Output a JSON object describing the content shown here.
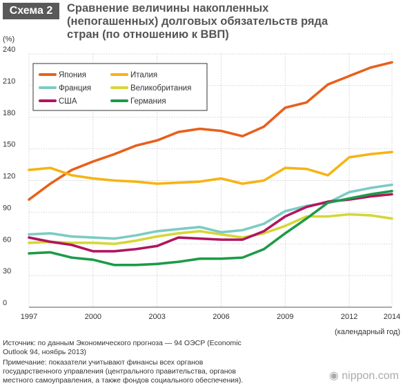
{
  "header": {
    "badge": "Схема 2",
    "title_lines": [
      "Сравнение величины накопленных",
      "(непогашенных) долговых обязательств ряда",
      "стран (по отношению к ВВП)"
    ]
  },
  "chart_data": {
    "type": "line",
    "ylabel": "(%)",
    "xlabel": "(календарный год)",
    "ylim": [
      0,
      240
    ],
    "yticks": [
      0,
      30,
      60,
      90,
      120,
      150,
      180,
      210,
      240
    ],
    "xlim": [
      1997,
      2014
    ],
    "xticks": [
      1997,
      2000,
      2003,
      2006,
      2009,
      2012,
      2014
    ],
    "grid": true,
    "legend_position": "top-left",
    "x": [
      1997,
      1998,
      1999,
      2000,
      2001,
      2002,
      2003,
      2004,
      2005,
      2006,
      2007,
      2008,
      2009,
      2010,
      2011,
      2012,
      2013,
      2014
    ],
    "series": [
      {
        "name": "Япония",
        "color": "#e8601c",
        "values": [
          102,
          117,
          130,
          138,
          145,
          153,
          158,
          166,
          169,
          167,
          162,
          171,
          189,
          194,
          211,
          219,
          227,
          232
        ]
      },
      {
        "name": "Италия",
        "color": "#f6b412",
        "values": [
          130,
          132,
          125,
          122,
          120,
          119,
          117,
          118,
          119,
          122,
          117,
          120,
          132,
          131,
          125,
          142,
          145,
          147
        ]
      },
      {
        "name": "Франция",
        "color": "#7ccbc3",
        "values": [
          69,
          70,
          67,
          66,
          65,
          68,
          72,
          74,
          76,
          71,
          73,
          79,
          91,
          96,
          99,
          109,
          113,
          116
        ]
      },
      {
        "name": "Великобритания",
        "color": "#d6d637",
        "values": [
          61,
          62,
          61,
          61,
          60,
          63,
          67,
          70,
          72,
          69,
          66,
          70,
          77,
          86,
          86,
          88,
          87,
          84
        ]
      },
      {
        "name": "США",
        "color": "#b0155f",
        "values": [
          66,
          62,
          59,
          53,
          53,
          55,
          58,
          66,
          65,
          64,
          64,
          72,
          86,
          95,
          100,
          102,
          105,
          107
        ]
      },
      {
        "name": "Германия",
        "color": "#1c9b48",
        "values": [
          51,
          52,
          47,
          45,
          40,
          40,
          41,
          43,
          46,
          46,
          47,
          55,
          70,
          84,
          99,
          103,
          107,
          110
        ]
      }
    ]
  },
  "footer": {
    "source_lines": [
      "Источник: по данным Экономического прогноза — 94 ОЭСР (Economic",
      "Outlook 94, ноябрь 2013)"
    ],
    "note_lines": [
      "Примечание: показатели учитывают финансы всех органов",
      "государственного управления (центрального правительства, органов",
      "местного самоуправления, а также фондов социального обеспечения)."
    ],
    "logo": "nippon.com"
  }
}
